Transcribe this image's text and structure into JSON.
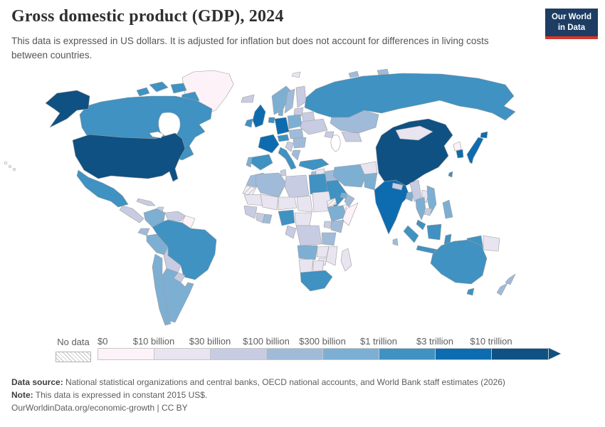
{
  "header": {
    "title": "Gross domestic product (GDP), 2024",
    "subtitle": "This data is expressed in US dollars. It is adjusted for inflation but does not account for differences in living costs between countries.",
    "logo": {
      "line1": "Our World",
      "line2": "in Data",
      "bg": "#1d3d63",
      "accent": "#d8352a"
    }
  },
  "chart_data": {
    "type": "choropleth",
    "title": "Gross domestic product (GDP), 2024",
    "unit": "US dollars, constant 2015 US$",
    "no_data_label": "No data",
    "tick_labels": [
      "$0",
      "$10 billion",
      "$30 billion",
      "$100 billion",
      "$300 billion",
      "$1 trillion",
      "$3 trillion",
      "$10 trillion"
    ],
    "palette": [
      "#fcf2f8",
      "#e8e4f0",
      "#c8cce2",
      "#a0bbd9",
      "#7dafd3",
      "#3f92c2",
      "#0d6cb0",
      "#0f5182"
    ],
    "legend_position": "bottom",
    "regions": {
      "greenland": 1,
      "canadian-arctic": 6,
      "canada": 6,
      "united-states": 8,
      "hawaii": 1,
      "mexico": 6,
      "central-america": 3,
      "cuba": 3,
      "hispaniola": 3,
      "colombia": 5,
      "venezuela": 3,
      "guyanas": 1,
      "ecuador": 4,
      "peru": 5,
      "brazil": 6,
      "bolivia": 3,
      "paraguay": 3,
      "uruguay": 3,
      "argentina": 5,
      "chile": 5,
      "iceland": 3,
      "norway": 5,
      "sweden": 4,
      "finland": 3,
      "baltics": 3,
      "belarus": 3,
      "denmark": 5,
      "poland": 5,
      "germany": 7,
      "benelux": 6,
      "uk": 7,
      "ireland": 6,
      "france": 7,
      "spain": 6,
      "portugal": 5,
      "italy": 6,
      "alpine": 6,
      "central-europe": 4,
      "ukraine": 3,
      "romania-bulgaria": 4,
      "balkans": 3,
      "greece": 4,
      "svalbard": 2,
      "russia": 6,
      "arctic-islands": 4,
      "kazakhstan": 4,
      "central-asia": 3,
      "caucasus": 3,
      "turkey": 6,
      "syria": 2,
      "iraq": 4,
      "levant": 4,
      "saudi-arabia": 6,
      "yemen": 1,
      "oman": 4,
      "uae": 5,
      "iran": 5,
      "afghanistan": 2,
      "pakistan": 5,
      "india": 7,
      "nepal": 3,
      "bangladesh": 5,
      "sri-lanka": 4,
      "china": 8,
      "mongolia": 2,
      "taiwan": 6,
      "north-korea": 1,
      "south-korea": 7,
      "japan": 7,
      "myanmar": 3,
      "laos": 2,
      "thailand": 5,
      "vietnam": 5,
      "cambodia": 3,
      "malaysia": 6,
      "indonesia": 6,
      "papua-new-guinea": 2,
      "philippines": 5,
      "morocco": 4,
      "western-sahara": "hatch",
      "algeria": 4,
      "tunisia": 3,
      "libya": 3,
      "egypt": 6,
      "mauritania": 2,
      "mali": 2,
      "niger": 2,
      "chad": 2,
      "sudan": 2,
      "eritrea": "hatch",
      "senegal-guinea": 3,
      "ivory-coast": 3,
      "ghana": 4,
      "nigeria": 6,
      "cameroon-car": 2,
      "ethiopia": 5,
      "somalia": 1,
      "kenya": 4,
      "uganda": 3,
      "drc": 3,
      "gabon-congo": 3,
      "tanzania": 4,
      "angola": 5,
      "zambia": 2,
      "mozambique": 2,
      "zimbabwe": 2,
      "namibia": 2,
      "botswana": 2,
      "south-africa": 6,
      "madagascar": 2,
      "australia": 6,
      "tasmania": 6,
      "new-zealand": 4
    }
  },
  "map": {
    "ocean_color": "#ffffff",
    "border_color": "#9e9e9e"
  },
  "footer": {
    "source_label": "Data source:",
    "source_text": " National statistical organizations and central banks, OECD national accounts, and World Bank staff estimates (2026)",
    "note_label": "Note:",
    "note_text": " This data is expressed in constant 2015 US$.",
    "license": "OurWorldinData.org/economic-growth | CC BY"
  }
}
